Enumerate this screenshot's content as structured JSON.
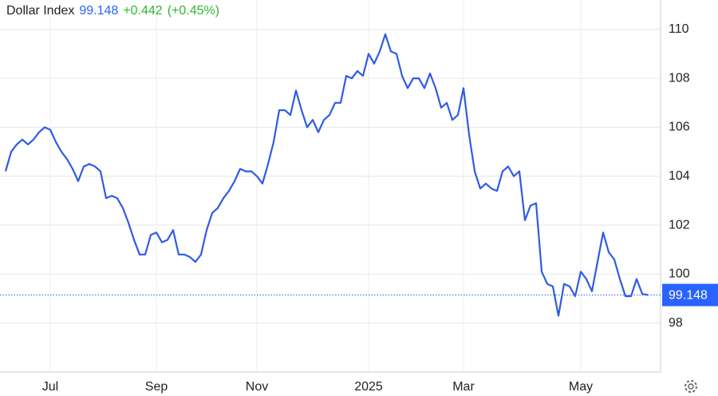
{
  "chart_data": {
    "type": "line",
    "title": "Dollar Index",
    "price": 99.148,
    "change": "+0.442",
    "change_pct": "(+0.45%)",
    "color": "#2f5be8",
    "grid": true,
    "categories": [
      null,
      null,
      null,
      null,
      null,
      null,
      null,
      null,
      "Jul",
      null,
      null,
      null,
      null,
      null,
      null,
      null,
      null,
      null,
      null,
      null,
      null,
      null,
      null,
      null,
      null,
      null,
      null,
      "Sep",
      null,
      null,
      null,
      null,
      null,
      null,
      null,
      null,
      null,
      null,
      null,
      null,
      null,
      null,
      null,
      null,
      null,
      "Nov",
      null,
      null,
      null,
      null,
      null,
      null,
      null,
      null,
      null,
      null,
      null,
      null,
      null,
      null,
      null,
      null,
      null,
      null,
      null,
      "2025",
      null,
      null,
      null,
      null,
      null,
      null,
      null,
      null,
      null,
      null,
      null,
      null,
      null,
      null,
      null,
      null,
      "Mar",
      null,
      null,
      null,
      null,
      null,
      null,
      null,
      null,
      null,
      null,
      null,
      null,
      null,
      null,
      null,
      null,
      null,
      null,
      null,
      null,
      "May",
      null,
      null,
      null,
      null,
      null,
      null,
      null,
      null,
      null,
      null,
      null,
      null
    ],
    "values": [
      104.2,
      105.0,
      105.3,
      105.5,
      105.3,
      105.5,
      105.8,
      106.0,
      105.9,
      105.4,
      105.0,
      104.7,
      104.3,
      103.8,
      104.4,
      104.5,
      104.4,
      104.2,
      103.1,
      103.2,
      103.1,
      102.7,
      102.1,
      101.4,
      100.8,
      100.8,
      101.6,
      101.7,
      101.3,
      101.4,
      101.8,
      100.8,
      100.8,
      100.7,
      100.5,
      100.8,
      101.8,
      102.5,
      102.7,
      103.1,
      103.4,
      103.8,
      104.3,
      104.2,
      104.2,
      104.0,
      103.7,
      104.5,
      105.4,
      106.7,
      106.7,
      106.5,
      107.5,
      106.7,
      106.0,
      106.3,
      105.8,
      106.3,
      106.5,
      107.0,
      107.0,
      108.1,
      108.0,
      108.3,
      108.1,
      109.0,
      108.6,
      109.1,
      109.8,
      109.1,
      109.0,
      108.1,
      107.6,
      108.0,
      108.0,
      107.6,
      108.2,
      107.6,
      106.8,
      107.0,
      106.3,
      106.5,
      107.6,
      105.7,
      104.2,
      103.5,
      103.7,
      103.5,
      103.4,
      104.2,
      104.4,
      104.0,
      104.2,
      102.2,
      102.8,
      102.9,
      100.1,
      99.6,
      99.5,
      98.3,
      99.6,
      99.5,
      99.1,
      100.1,
      99.8,
      99.3,
      100.5,
      101.7,
      100.9,
      100.6,
      99.8,
      99.1,
      99.1,
      99.8,
      99.2,
      99.148
    ],
    "ylim": [
      96,
      111.2
    ],
    "yticks": [
      98,
      100,
      102,
      104,
      106,
      108,
      110
    ]
  }
}
